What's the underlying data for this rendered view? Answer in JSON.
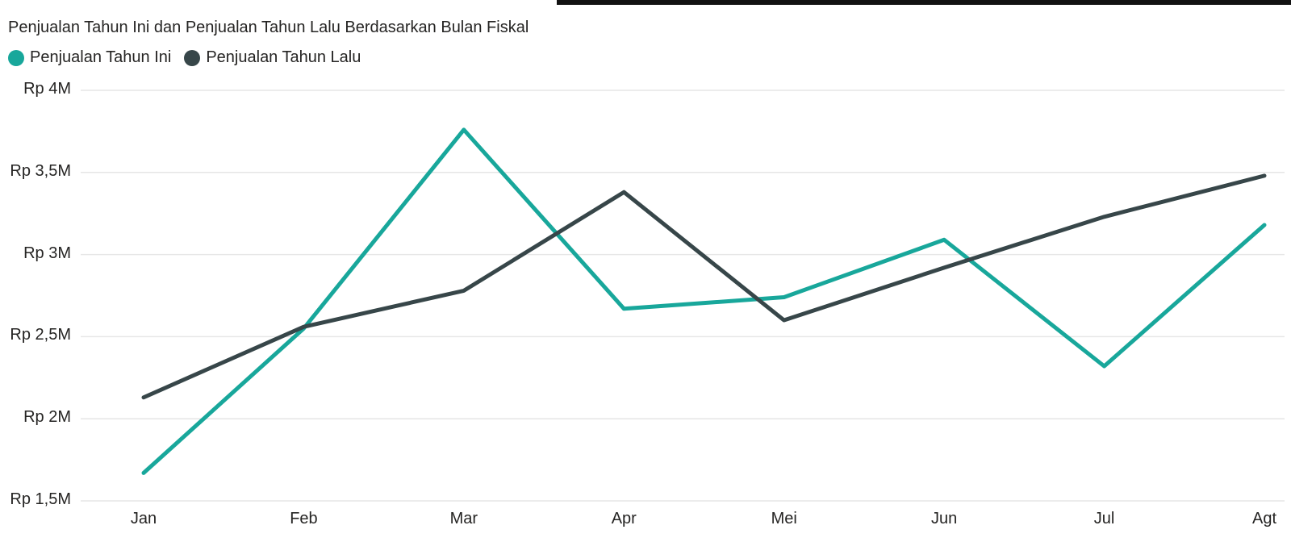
{
  "page": {
    "top_strip_color": "#121212",
    "background_color": "#ffffff",
    "text_color": "#252423",
    "gridline_color": "#e6e6e6"
  },
  "chart_data": {
    "type": "line",
    "title": "Penjualan Tahun Ini dan Penjualan Tahun Lalu Berdasarkan Bulan Fiskal",
    "legend_position": "top-left",
    "grid": "horizontal",
    "categories": [
      "Jan",
      "Feb",
      "Mar",
      "Apr",
      "Mei",
      "Jun",
      "Jul",
      "Agt"
    ],
    "series": [
      {
        "name": "Penjualan Tahun Ini",
        "color": "#18a79b",
        "values": [
          1.67,
          2.55,
          3.76,
          2.67,
          2.74,
          3.09,
          2.32,
          3.18
        ]
      },
      {
        "name": "Penjualan Tahun Lalu",
        "color": "#374649",
        "values": [
          2.13,
          2.56,
          2.78,
          3.38,
          2.6,
          2.92,
          3.23,
          3.48
        ]
      }
    ],
    "ylim": [
      1.5,
      4
    ],
    "ytick_values": [
      4,
      3.5,
      3,
      2.5,
      2,
      1.5
    ],
    "ytick_labels": [
      "Rp 4M",
      "Rp 3,5M",
      "Rp 3M",
      "Rp 2,5M",
      "Rp 2M",
      "Rp 1,5M"
    ],
    "value_unit": "Rp M"
  }
}
